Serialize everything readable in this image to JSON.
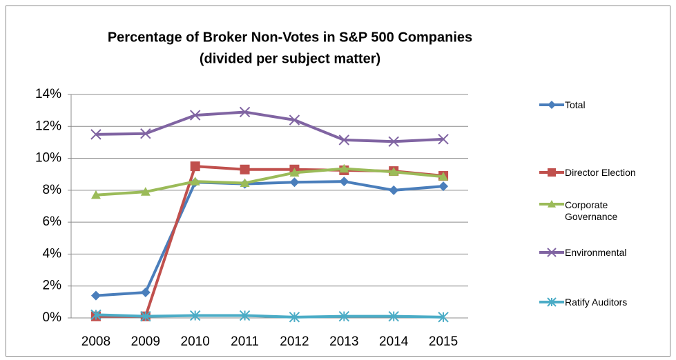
{
  "chart_data": {
    "type": "line",
    "title": "Percentage of Broker Non-Votes in S&P 500 Companies",
    "subtitle": "(divided per subject matter)",
    "categories": [
      "2008",
      "2009",
      "2010",
      "2011",
      "2012",
      "2013",
      "2014",
      "2015"
    ],
    "series": [
      {
        "name": "Total",
        "color": "#4a7ebb",
        "marker": "diamond",
        "values": [
          1.4,
          1.6,
          8.5,
          8.4,
          8.5,
          8.55,
          8.0,
          8.25
        ]
      },
      {
        "name": "Director Election",
        "color": "#c0504d",
        "marker": "square",
        "values": [
          0.1,
          0.1,
          9.5,
          9.3,
          9.3,
          9.25,
          9.2,
          8.9
        ]
      },
      {
        "name": "Corporate Governance",
        "color": "#9bbb59",
        "marker": "triangle",
        "values": [
          7.7,
          7.9,
          8.55,
          8.45,
          9.1,
          9.35,
          9.15,
          8.85
        ]
      },
      {
        "name": "Environmental",
        "color": "#8064a2",
        "marker": "x",
        "values": [
          11.5,
          11.55,
          12.7,
          12.9,
          12.4,
          11.15,
          11.05,
          11.2
        ]
      },
      {
        "name": "Ratify Auditors",
        "color": "#4bacc6",
        "marker": "asterisk",
        "values": [
          0.2,
          0.1,
          0.15,
          0.15,
          0.05,
          0.1,
          0.1,
          0.05
        ]
      }
    ],
    "ylim": [
      0,
      14
    ],
    "yticks": [
      {
        "value": 0,
        "label": "0%"
      },
      {
        "value": 2,
        "label": "2%"
      },
      {
        "value": 4,
        "label": "4%"
      },
      {
        "value": 6,
        "label": "6%"
      },
      {
        "value": 8,
        "label": "8%"
      },
      {
        "value": 10,
        "label": "10%"
      },
      {
        "value": 12,
        "label": "12%"
      },
      {
        "value": 14,
        "label": "14%"
      }
    ],
    "grid": true,
    "legend": "right"
  }
}
